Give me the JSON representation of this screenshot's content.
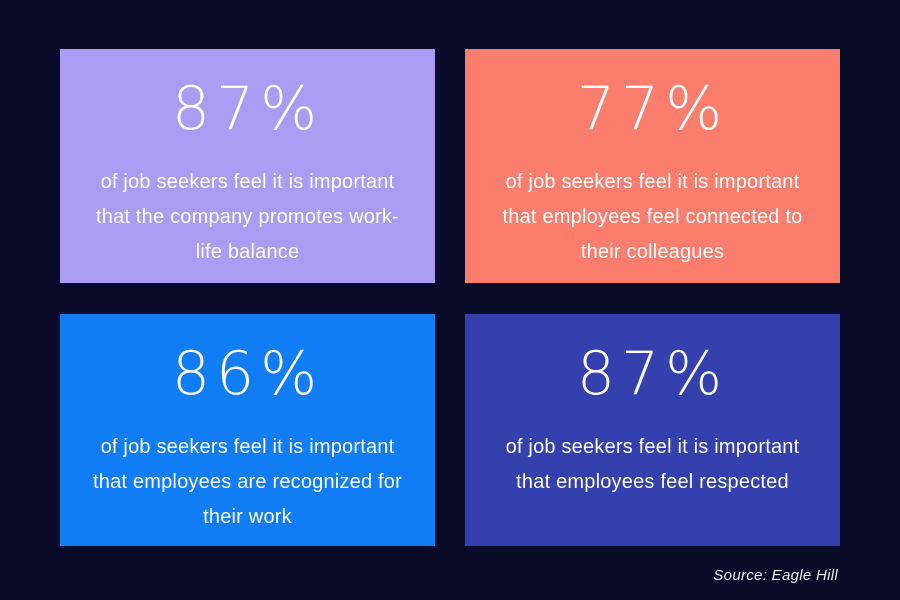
{
  "background_color": "#090b28",
  "cards": [
    {
      "value": "87%",
      "description": "of job seekers feel it is important that the company promotes work-life balance",
      "color": "#a99cf2"
    },
    {
      "value": "77%",
      "description": "of job seekers feel it is important that employees feel connected to their colleagues",
      "color": "#fa7d6e"
    },
    {
      "value": "86%",
      "description": "of job seekers feel it is important that employees are recognized for their work",
      "color": "#117df5"
    },
    {
      "value": "87%",
      "description": "of job seekers feel it is important that employees feel respected",
      "color": "#3340ae"
    }
  ],
  "source": "Source: Eagle Hill",
  "chart_data": {
    "type": "table",
    "title": "",
    "categories": [
      "company promotes work-life balance",
      "employees feel connected to their colleagues",
      "employees are recognized for their work",
      "employees feel respected"
    ],
    "values": [
      87,
      77,
      86,
      87
    ],
    "unit": "% of job seekers who feel it is important",
    "legend_position": "none",
    "grid": false,
    "source": "Source: Eagle Hill"
  }
}
